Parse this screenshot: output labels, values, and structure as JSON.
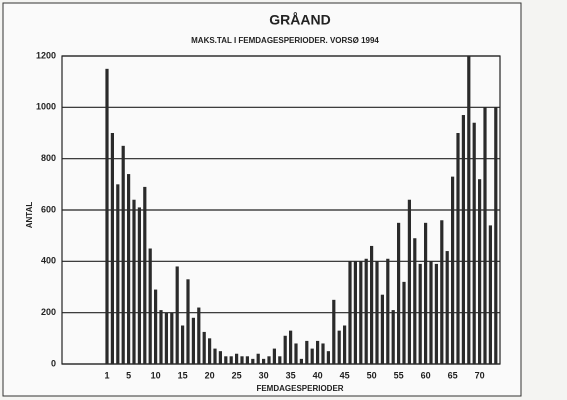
{
  "chart_data": {
    "type": "bar",
    "title": "GRÅAND",
    "subtitle": "MAKS.TAL I FEMDAGESPERIODER. VORSØ 1994",
    "x_label": "FEMDAGESPERIODER",
    "y_label": "ANTAL",
    "categories": [
      "1",
      null,
      null,
      null,
      "5",
      null,
      null,
      null,
      null,
      "10",
      null,
      null,
      null,
      null,
      "15",
      null,
      null,
      null,
      null,
      "20",
      null,
      null,
      null,
      null,
      "25",
      null,
      null,
      null,
      null,
      "30",
      null,
      null,
      null,
      null,
      "35",
      null,
      null,
      null,
      null,
      "40",
      null,
      null,
      null,
      null,
      "45",
      null,
      null,
      null,
      null,
      "50",
      null,
      null,
      null,
      null,
      "55",
      null,
      null,
      null,
      null,
      "60",
      null,
      null,
      null,
      null,
      "65",
      null,
      null,
      null,
      null,
      "70",
      null,
      null,
      null
    ],
    "values": [
      1150,
      900,
      700,
      850,
      740,
      640,
      610,
      690,
      450,
      290,
      210,
      200,
      200,
      380,
      150,
      330,
      180,
      220,
      125,
      100,
      60,
      50,
      30,
      30,
      40,
      30,
      30,
      20,
      40,
      20,
      30,
      60,
      30,
      110,
      130,
      80,
      20,
      90,
      60,
      90,
      80,
      50,
      250,
      130,
      150,
      400,
      400,
      400,
      410,
      460,
      400,
      270,
      410,
      210,
      550,
      320,
      640,
      490,
      390,
      550,
      400,
      390,
      560,
      440,
      730,
      900,
      970,
      1200,
      940,
      720,
      1000,
      540,
      1000
    ],
    "color": "#2a2a2a",
    "ylim": [
      0,
      1200
    ],
    "yticks": [
      0,
      200,
      400,
      600,
      800,
      1000,
      1200
    ],
    "grid": true
  }
}
